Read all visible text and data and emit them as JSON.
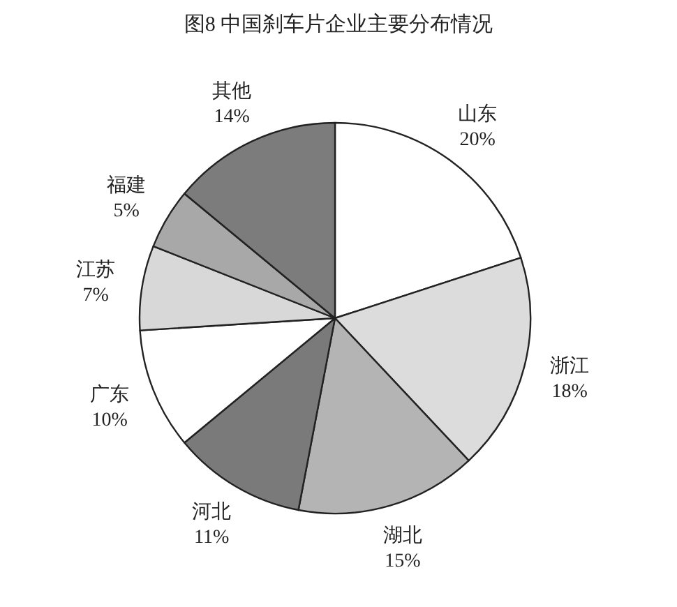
{
  "chart_data": {
    "type": "pie",
    "title": "图8 中国刹车片企业主要分布情况",
    "categories": [
      "山东",
      "浙江",
      "湖北",
      "河北",
      "广东",
      "江苏",
      "福建",
      "其他"
    ],
    "values": [
      20,
      18,
      15,
      11,
      10,
      7,
      5,
      14
    ],
    "colors": [
      "#ffffff",
      "#dcdcdc",
      "#b4b4b4",
      "#7a7a7a",
      "#ffffff",
      "#d8d8d8",
      "#a8a8a8",
      "#7c7c7c"
    ],
    "value_labels": [
      "20%",
      "18%",
      "15%",
      "11%",
      "10%",
      "7%",
      "5%",
      "14%"
    ]
  }
}
